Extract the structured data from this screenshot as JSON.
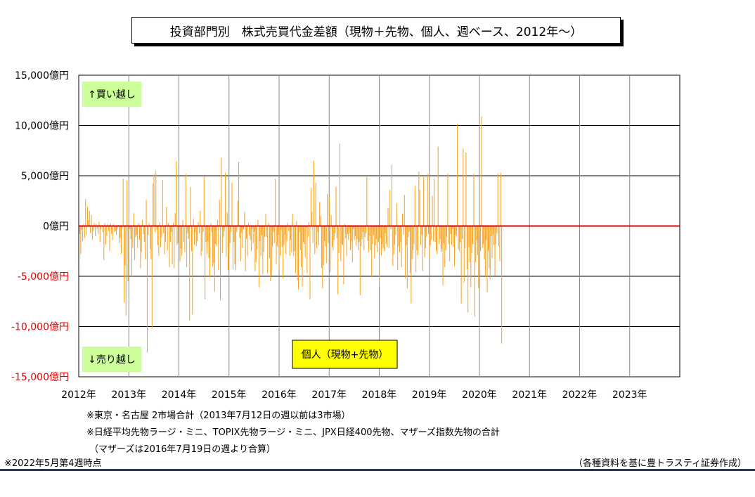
{
  "header": {
    "title": "投資部門別　株式売買代金差額（現物＋先物、個人、週ベース、2012年～）"
  },
  "notes": {
    "line1": "※東京・名古屋 2市場合計（2013年7月12日の週以前は3市場）",
    "line2": "※日経平均先物ラージ・ミニ、TOPIX先物ラージ・ミニ、JPX日経400先物、マザーズ指数先物の合計",
    "line3": "（マザーズは2016年7月19日の週より合算）",
    "asof": "※2022年5月第4週時点",
    "source": "（各種資料を基に豊トラスティ証券作成）"
  },
  "colors": {
    "bar": "#f7a21b",
    "zero_line": "#e00000",
    "negative_tick": "#e00000",
    "annotation_green": "#ccff99",
    "legend_yellow": "#ffff00"
  },
  "chart_data": {
    "type": "bar",
    "title": "投資部門別　株式売買代金差額（現物＋先物、個人、週ベース、2012年～）",
    "ylim": [
      -15000,
      15000
    ],
    "y_ticks": [
      {
        "value": 15000,
        "label": "15,000億円"
      },
      {
        "value": 10000,
        "label": "10,000億円"
      },
      {
        "value": 5000,
        "label": "5,000億円"
      },
      {
        "value": 0,
        "label": "0億円"
      },
      {
        "value": -5000,
        "label": "-5,000億円"
      },
      {
        "value": -10000,
        "label": "-10,000億円"
      },
      {
        "value": -15000,
        "label": "-15,000億円"
      }
    ],
    "x_ticks": [
      "2012年",
      "2013年",
      "2014年",
      "2015年",
      "2016年",
      "2017年",
      "2018年",
      "2019年",
      "2020年",
      "2021年",
      "2022年",
      "2023年"
    ],
    "grid": true,
    "annotations": {
      "buy": "↑買い越し",
      "sell": "↓売り越し"
    },
    "series": [
      {
        "name": "個人（現物+先物）",
        "weekly_start": "2012年",
        "x_unit": "week",
        "values": [
          -800,
          -2800,
          -400,
          -1500,
          200,
          -1200,
          2700,
          -900,
          1900,
          600,
          1500,
          -700,
          1100,
          -1400,
          -500,
          300,
          -1000,
          200,
          -300,
          -800,
          400,
          -1600,
          -300,
          100,
          -600,
          -3400,
          300,
          -1800,
          -1000,
          200,
          -500,
          -2500,
          300,
          -800,
          -1400,
          200,
          -600,
          -500,
          -900,
          -300,
          100,
          -1700,
          -1200,
          -2800,
          -200,
          4700,
          -7600,
          -3900,
          -8900,
          4500,
          -5500,
          -3000,
          -300,
          -1300,
          -5100,
          -2200,
          1300,
          -3400,
          -1100,
          -900,
          -2200,
          300,
          -1400,
          -4200,
          -2600,
          600,
          -800,
          -1600,
          -3300,
          2600,
          -12600,
          -900,
          300,
          -2300,
          -3300,
          -10200,
          4200,
          5200,
          -600,
          5500,
          -400,
          -1900,
          -3000,
          400,
          -2100,
          -1100,
          4600,
          -700,
          -2800,
          -1600,
          1900,
          -2400,
          300,
          -4100,
          -1600,
          -600,
          -3800,
          300,
          -4200,
          1300,
          6400,
          -1900,
          -1700,
          200,
          -3500,
          -2200,
          -3000,
          600,
          -1600,
          -2600,
          5200,
          -4100,
          -700,
          -1300,
          -9400,
          3900,
          -2500,
          -8800,
          700,
          -1900,
          -600,
          -2000,
          -1500,
          400,
          -700,
          1500,
          -3000,
          -2500,
          -600,
          4900,
          -7300,
          -1600,
          -2800,
          -1500,
          -3200,
          -5100,
          300,
          -600,
          -4000,
          -3700,
          -6500,
          -1800,
          -2000,
          600,
          -4400,
          2600,
          -7400,
          6800,
          -2700,
          -1100,
          -500,
          5300,
          -3100,
          1400,
          -4400,
          -2600,
          -1700,
          -600,
          4300,
          -4300,
          -1600,
          -3800,
          -4400,
          -600,
          2500,
          6400,
          -1200,
          -3500,
          -700,
          -2200,
          -300,
          1400,
          -4500,
          -1300,
          -3000,
          300,
          -900,
          -1400,
          -2500,
          -300,
          -1700,
          -600,
          -4500,
          -3600,
          -2300,
          600,
          -6100,
          -1500,
          -3000,
          -900,
          -4800,
          -2600,
          -1100,
          1200,
          -1100,
          -4700,
          300,
          -3200,
          -5500,
          -4900,
          -2100,
          -600,
          -1700,
          4700,
          -3800,
          -2000,
          -900,
          -4300,
          -2900,
          -400,
          -2100,
          -5200,
          -1900,
          -900,
          -2800,
          -1500,
          300,
          -500,
          -3000,
          -1400,
          -2600,
          1200,
          -3000,
          -2500,
          -4700,
          500,
          -5400,
          -6300,
          -600,
          -2400,
          -4100,
          -6000,
          -1600,
          -1800,
          -3100,
          -200,
          -4700,
          -1100,
          400,
          -7300,
          3800,
          1400,
          -1700,
          6500,
          -2800,
          4300,
          -2200,
          -600,
          -1900,
          2400,
          1000,
          -4200,
          -6200,
          -3900,
          -1500,
          -2000,
          -3700,
          3200,
          -1700,
          2800,
          -4600,
          1100,
          -2100,
          -2400,
          -1400,
          -700,
          3900,
          -1200,
          -6800,
          -2700,
          8200,
          -3500,
          -1800,
          -1900,
          -5800,
          200,
          -1200,
          -3000,
          -800,
          -1400,
          -700,
          -2400,
          -1500,
          -3600,
          -300,
          -1400,
          -1000,
          -2000,
          -1300,
          -2400,
          -1600,
          -6900,
          -2000,
          -1300,
          -600,
          -2400,
          -1100,
          -700,
          5000,
          -1500,
          -2600,
          -1000,
          -2400,
          -5000,
          -1800,
          -900,
          -3200,
          -1900,
          -1300,
          -2600,
          -1600,
          -6000,
          -1200,
          -2900,
          -1800,
          -2200,
          -2500,
          -700,
          -1800,
          -2100,
          1800,
          -2200,
          3600,
          -300,
          6100,
          -4000,
          -2800,
          -1900,
          -900,
          2300,
          -4400,
          -2000,
          -2600,
          -1600,
          -4100,
          1200,
          -900,
          3100,
          -5200,
          -1900,
          -6200,
          -1100,
          -600,
          -4700,
          -7700,
          -3300,
          -2400,
          -1800,
          4000,
          -4600,
          -2400,
          -2900,
          5400,
          3600,
          -1900,
          -900,
          -4500,
          4900,
          -3100,
          -2200,
          -1100,
          5200,
          -800,
          -3300,
          -1900,
          -1400,
          3000,
          -1500,
          4700,
          -1600,
          -2500,
          -2800,
          7900,
          -1800,
          -1300,
          -2600,
          -2300,
          -5900,
          -1700,
          -4100,
          -2400,
          -1100,
          5200,
          -1800,
          -3500,
          -800,
          -1900,
          -300,
          -2100,
          -4000,
          -900,
          -1100,
          10200,
          -2300,
          -2500,
          -1600,
          -7700,
          -1300,
          7700,
          -5600,
          -2200,
          7300,
          -4300,
          -8600,
          -2100,
          -3600,
          -6100,
          -2700,
          -1800,
          5200,
          -9000,
          -3600,
          -1400,
          -2900,
          -6200,
          -1000,
          -2500,
          10900,
          -2200,
          -1800,
          -3300,
          -5000,
          -1400,
          -6600,
          -2500,
          -4200,
          -5300,
          -1000,
          -3200,
          -800,
          -1900,
          -4900,
          -1800,
          -700,
          5200,
          -2000,
          -3500,
          5300,
          -11700
        ]
      }
    ]
  }
}
